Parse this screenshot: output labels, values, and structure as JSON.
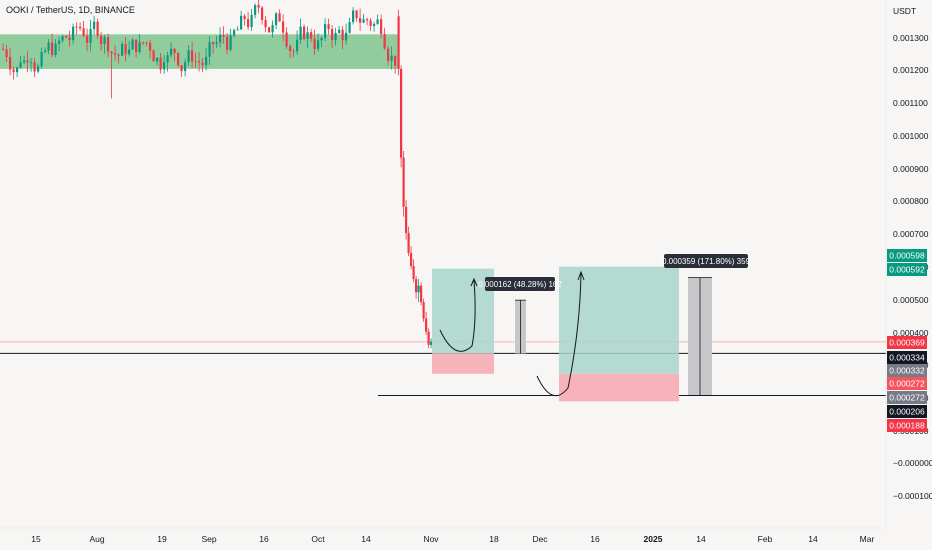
{
  "header": {
    "symbol": "OOKI / TetherUS, 1D, BINANCE"
  },
  "price_axis": {
    "currency": "USDT",
    "ticks": [
      "0.001300",
      "0.001200",
      "0.001100",
      "0.001000",
      "0.000900",
      "0.000800",
      "0.000700",
      "0.000600",
      "0.000500",
      "0.000400",
      "0.000300",
      "0.000200",
      "0.000100",
      "0.000000",
      "−0.000000",
      "−0.000100"
    ]
  },
  "time_axis": {
    "labels": [
      "15",
      "Aug",
      "19",
      "Sep",
      "16",
      "Oct",
      "14",
      "Nov",
      "18",
      "Dec",
      "16",
      "2025",
      "14",
      "Feb",
      "14",
      "Mar"
    ],
    "bold": [
      "2025"
    ]
  },
  "price_badges": [
    {
      "text": "0.000598",
      "price": 0.000598,
      "color": "#089981"
    },
    {
      "text": "0.000592",
      "price": 0.000592,
      "color": "#089981"
    },
    {
      "text": "0.000369",
      "price": 0.000369,
      "color": "#f23645"
    },
    {
      "text": "0.000334",
      "price": 0.000334,
      "color": "#131722"
    },
    {
      "text": "0.000332",
      "price": 0.000332,
      "color": "#787b86"
    },
    {
      "text": "0.000272",
      "price": 0.000272,
      "color": "#f7525f"
    },
    {
      "text": "0.000272",
      "price": 0.000272,
      "color": "#787b86"
    },
    {
      "text": "0.000206",
      "price": 0.000206,
      "color": "#131722"
    },
    {
      "text": "0.000188",
      "price": 0.000188,
      "color": "#f23645"
    }
  ],
  "tooltips": {
    "first_range": "0.000162 (48.28%) 162",
    "second_range": "0.000359 (171.80%) 359"
  },
  "colors": {
    "up": "#089981",
    "down": "#f23645",
    "supply_zone": "#7fc48d",
    "target_zone": "#a8d5cb",
    "stop_zone": "#f7b3ba",
    "range_box": "#c7c7c9"
  },
  "chart_data": {
    "type": "candlestick",
    "title": "OOKI / TetherUS, 1D, BINANCE",
    "ylabel": "USDT",
    "ylim": [
      -0.00014,
      0.00142
    ],
    "series": [
      {
        "name": "OOKI / TetherUS",
        "description": "Daily candles: range-bound ~0.00120–0.00140 Jul–Oct 2024, collapse in late Oct to ~0.00033–0.00037"
      }
    ],
    "levels": [
      {
        "name": "supply zone",
        "from": 0.0012,
        "to": 0.001305
      },
      {
        "name": "horizontal line",
        "value": 0.000334
      },
      {
        "name": "horizontal line",
        "value": 0.000206
      }
    ],
    "positions": [
      {
        "entry": 0.000334,
        "target": 0.000592,
        "stop": 0.000272
      },
      {
        "entry": 0.000272,
        "target": 0.000598,
        "stop": 0.000188
      }
    ],
    "measurements": [
      {
        "label": "0.000162 (48.28%) 162",
        "value": 0.000162,
        "percent": 48.28
      },
      {
        "label": "0.000359 (171.80%) 359",
        "value": 0.000359,
        "percent": 171.8
      }
    ]
  }
}
